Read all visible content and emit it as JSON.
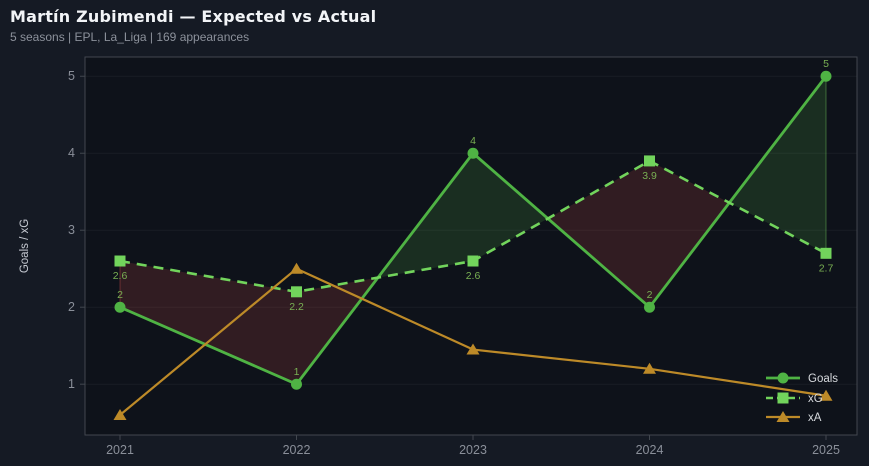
{
  "window": {
    "background": "#151a24",
    "plot_background": "#0e121a",
    "spine_color": "#42474f",
    "grid_color": "rgba(255,255,255,0.05)",
    "tick_text_color": "#8a8f99",
    "axis_label_color": "#c6cad2",
    "legend_text_color": "#d7dade"
  },
  "header": {
    "title": "Martín Zubimendi — Expected vs Actual",
    "subtitle": "5 seasons | EPL, La_Liga | 169 appearances"
  },
  "chart_data": {
    "type": "line",
    "title": "Martín Zubimendi — Expected vs Actual",
    "subtitle": "5 seasons | EPL, La_Liga | 169 appearances",
    "xlabel": "",
    "ylabel": "Goals / xG",
    "x_ticks": [
      "2021",
      "2022",
      "2023",
      "2024",
      "2025"
    ],
    "y_ticks": [
      1,
      2,
      3,
      4,
      5
    ],
    "ylim": [
      0.34,
      5.25
    ],
    "grid": "horizontal",
    "legend_position": "lower right",
    "point_label_color": "#79b053",
    "series": [
      {
        "name": "Goals",
        "style": "solid",
        "marker": "circle",
        "color": "#4fb344",
        "values": [
          2,
          1,
          4,
          2,
          5
        ],
        "point_labels": [
          "2",
          "1",
          "4",
          "2",
          "5"
        ]
      },
      {
        "name": "xG",
        "style": "dashed",
        "marker": "square",
        "color": "#72d45c",
        "values": [
          2.6,
          2.2,
          2.6,
          3.9,
          2.7
        ],
        "point_labels": [
          "2.6",
          "2.2",
          "2.6",
          "3.9",
          "2.7"
        ]
      },
      {
        "name": "xA",
        "style": "solid",
        "marker": "triangle-up",
        "color": "#bd8a28",
        "values": [
          0.6,
          2.5,
          1.45,
          1.2,
          0.85
        ],
        "point_labels": []
      }
    ],
    "fill_between": {
      "upper": "Goals",
      "lower": "xG",
      "positive_color": "rgba(95,190,75,0.16)",
      "negative_color": "rgba(190,70,70,0.20)",
      "positive_edge": "rgba(110,200,90,0.45)",
      "negative_edge": "rgba(190,70,70,0.45)"
    },
    "legend": {
      "items": [
        "Goals",
        "xG",
        "xA"
      ]
    }
  }
}
